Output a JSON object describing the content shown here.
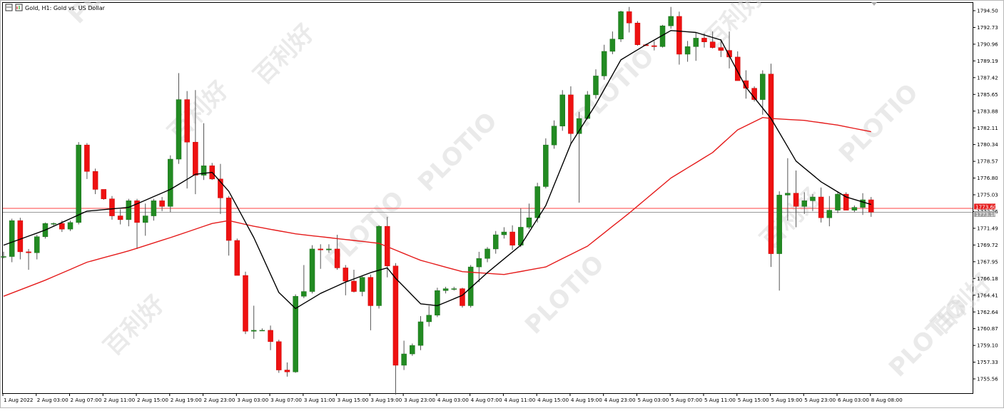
{
  "header": {
    "title": "Gold, H1:  Gold vs. US Dollar"
  },
  "watermark": {
    "brand": "PLOTIO",
    "cn": "百利好"
  },
  "colors": {
    "bull": "#228b22",
    "bear": "#ee1111",
    "wick": "#555555",
    "ma_fast": "#000000",
    "ma_slow": "#e51b1b",
    "red_line": "#ff4040",
    "grey_line": "#9a9a9a",
    "bid_tag": "#e52020",
    "ask_tag": "#a0a0a0"
  },
  "chart_data": {
    "type": "candlestick",
    "symbol": "Gold",
    "timeframe": "H1",
    "ylim": [
      1754.4,
      1795.3
    ],
    "y_ticks": [
      "1794.50",
      "1792.73",
      "1790.96",
      "1789.19",
      "1787.42",
      "1785.65",
      "1783.88",
      "1782.11",
      "1780.34",
      "1778.57",
      "1776.80",
      "1775.03",
      "1773.26",
      "1771.49",
      "1769.72",
      "1767.95",
      "1766.18",
      "1764.41",
      "1762.64",
      "1760.87",
      "1759.10",
      "1757.33",
      "1755.56"
    ],
    "x_ticks": [
      "1 Aug 2022",
      "2 Aug 03:00",
      "2 Aug 07:00",
      "2 Aug 11:00",
      "2 Aug 15:00",
      "2 Aug 19:00",
      "2 Aug 23:00",
      "3 Aug 03:00",
      "3 Aug 07:00",
      "3 Aug 11:00",
      "3 Aug 15:00",
      "3 Aug 19:00",
      "3 Aug 23:00",
      "4 Aug 03:00",
      "4 Aug 07:00",
      "4 Aug 11:00",
      "4 Aug 15:00",
      "4 Aug 19:00",
      "4 Aug 23:00",
      "5 Aug 03:00",
      "5 Aug 07:00",
      "5 Aug 11:00",
      "5 Aug 15:00",
      "5 Aug 19:00",
      "5 Aug 23:00",
      "6 Aug 03:00",
      "8 Aug 08:00"
    ],
    "price_tags": {
      "red": "1773.60",
      "grey": "1773.18"
    },
    "levels": {
      "red": 1773.6,
      "grey": 1773.18
    },
    "candles": [
      [
        1768.5,
        1769.0,
        1768.3,
        1768.5
      ],
      [
        1768.5,
        1772.5,
        1767.9,
        1772.3
      ],
      [
        1772.3,
        1772.6,
        1768.2,
        1769.0
      ],
      [
        1769.0,
        1769.3,
        1767.1,
        1768.9
      ],
      [
        1768.9,
        1770.8,
        1768.2,
        1770.6
      ],
      [
        1770.6,
        1772.1,
        1770.4,
        1772.0
      ],
      [
        1772.0,
        1772.1,
        1771.7,
        1772.0
      ],
      [
        1772.0,
        1772.3,
        1771.1,
        1771.4
      ],
      [
        1771.4,
        1772.3,
        1771.2,
        1772.1
      ],
      [
        1772.1,
        1780.6,
        1771.9,
        1780.3
      ],
      [
        1780.3,
        1780.5,
        1776.7,
        1777.5
      ],
      [
        1777.5,
        1777.8,
        1775.1,
        1775.6
      ],
      [
        1775.6,
        1775.6,
        1774.5,
        1774.6
      ],
      [
        1774.6,
        1774.9,
        1772.4,
        1772.8
      ],
      [
        1772.8,
        1773.5,
        1771.9,
        1772.4
      ],
      [
        1772.4,
        1774.6,
        1771.7,
        1774.4
      ],
      [
        1774.4,
        1774.6,
        1769.3,
        1772.1
      ],
      [
        1772.1,
        1774.1,
        1770.7,
        1772.8
      ],
      [
        1772.8,
        1774.6,
        1772.3,
        1774.4
      ],
      [
        1774.4,
        1774.8,
        1773.3,
        1773.8
      ],
      [
        1773.8,
        1779.2,
        1773.2,
        1778.8
      ],
      [
        1778.8,
        1787.9,
        1778.3,
        1785.1
      ],
      [
        1785.1,
        1786.0,
        1775.7,
        1780.6
      ],
      [
        1780.6,
        1786.1,
        1775.1,
        1777.1
      ],
      [
        1777.1,
        1782.6,
        1776.6,
        1778.1
      ],
      [
        1778.1,
        1778.4,
        1776.6,
        1776.7
      ],
      [
        1776.7,
        1778.3,
        1773.0,
        1774.7
      ],
      [
        1774.7,
        1774.9,
        1768.6,
        1770.2
      ],
      [
        1770.2,
        1770.4,
        1766.6,
        1766.5
      ],
      [
        1766.5,
        1766.9,
        1760.3,
        1760.6
      ],
      [
        1760.6,
        1763.3,
        1759.8,
        1760.7
      ],
      [
        1760.7,
        1760.9,
        1760.7,
        1760.7
      ],
      [
        1760.7,
        1761.2,
        1758.6,
        1759.5
      ],
      [
        1759.5,
        1759.7,
        1756.2,
        1756.5
      ],
      [
        1756.5,
        1757.3,
        1755.8,
        1756.3
      ],
      [
        1756.3,
        1764.5,
        1756.2,
        1764.3
      ],
      [
        1764.3,
        1767.6,
        1764.1,
        1764.8
      ],
      [
        1764.8,
        1769.7,
        1764.6,
        1769.3
      ],
      [
        1769.3,
        1769.8,
        1767.2,
        1769.2
      ],
      [
        1769.2,
        1769.8,
        1768.9,
        1769.3
      ],
      [
        1769.3,
        1770.8,
        1767.1,
        1767.3
      ],
      [
        1767.3,
        1767.6,
        1764.4,
        1765.9
      ],
      [
        1765.9,
        1767.1,
        1764.7,
        1764.8
      ],
      [
        1764.8,
        1766.5,
        1764.3,
        1766.3
      ],
      [
        1766.3,
        1766.6,
        1760.7,
        1763.3
      ],
      [
        1763.3,
        1771.8,
        1763.0,
        1771.7
      ],
      [
        1771.7,
        1772.7,
        1766.3,
        1767.5
      ],
      [
        1767.5,
        1767.8,
        1753.9,
        1757.0
      ],
      [
        1757.0,
        1759.6,
        1756.5,
        1758.2
      ],
      [
        1758.2,
        1759.3,
        1758.0,
        1759.1
      ],
      [
        1759.1,
        1762.2,
        1758.6,
        1761.6
      ],
      [
        1761.6,
        1763.3,
        1761.1,
        1762.3
      ],
      [
        1762.3,
        1765.2,
        1762.1,
        1764.9
      ],
      [
        1764.9,
        1765.3,
        1764.6,
        1765.1
      ],
      [
        1765.1,
        1765.3,
        1764.9,
        1765.1
      ],
      [
        1765.1,
        1765.2,
        1763.1,
        1763.3
      ],
      [
        1763.3,
        1767.6,
        1763.1,
        1767.4
      ],
      [
        1767.4,
        1769.0,
        1765.8,
        1768.3
      ],
      [
        1768.3,
        1769.5,
        1767.9,
        1769.3
      ],
      [
        1769.3,
        1771.2,
        1768.8,
        1770.8
      ],
      [
        1770.8,
        1771.6,
        1770.4,
        1771.1
      ],
      [
        1771.1,
        1771.8,
        1769.2,
        1769.7
      ],
      [
        1769.7,
        1773.6,
        1769.5,
        1771.6
      ],
      [
        1771.6,
        1774.1,
        1771.4,
        1772.6
      ],
      [
        1772.6,
        1776.3,
        1772.1,
        1775.9
      ],
      [
        1775.9,
        1781.0,
        1775.7,
        1780.3
      ],
      [
        1780.3,
        1782.9,
        1779.9,
        1782.3
      ],
      [
        1782.3,
        1786.1,
        1781.8,
        1785.6
      ],
      [
        1785.6,
        1786.5,
        1780.4,
        1781.5
      ],
      [
        1781.5,
        1783.8,
        1774.2,
        1783.1
      ],
      [
        1783.1,
        1786.0,
        1783.0,
        1785.6
      ],
      [
        1785.6,
        1788.3,
        1785.2,
        1787.6
      ],
      [
        1787.6,
        1790.9,
        1787.2,
        1790.2
      ],
      [
        1790.2,
        1792.3,
        1789.9,
        1791.5
      ],
      [
        1791.5,
        1794.5,
        1791.2,
        1794.4
      ],
      [
        1794.4,
        1794.9,
        1792.2,
        1793.2
      ],
      [
        1793.2,
        1793.4,
        1790.8,
        1790.9
      ],
      [
        1790.9,
        1791.0,
        1790.8,
        1790.8
      ],
      [
        1790.8,
        1791.3,
        1790.3,
        1790.7
      ],
      [
        1790.7,
        1793.0,
        1790.6,
        1792.9
      ],
      [
        1792.9,
        1794.9,
        1792.6,
        1793.9
      ],
      [
        1793.9,
        1794.4,
        1788.8,
        1789.9
      ],
      [
        1789.9,
        1791.3,
        1789.1,
        1790.7
      ],
      [
        1790.7,
        1792.2,
        1789.2,
        1791.6
      ],
      [
        1791.6,
        1792.1,
        1790.6,
        1791.2
      ],
      [
        1791.2,
        1792.3,
        1790.5,
        1790.6
      ],
      [
        1790.6,
        1791.5,
        1789.6,
        1790.3
      ],
      [
        1790.3,
        1792.3,
        1788.4,
        1789.6
      ],
      [
        1789.6,
        1790.2,
        1787.1,
        1787.1
      ],
      [
        1787.1,
        1788.2,
        1785.2,
        1786.3
      ],
      [
        1786.3,
        1786.5,
        1784.9,
        1785.1
      ],
      [
        1785.1,
        1788.2,
        1783.5,
        1787.8
      ],
      [
        1787.8,
        1788.9,
        1767.4,
        1768.8
      ],
      [
        1768.8,
        1775.4,
        1764.9,
        1775.0
      ],
      [
        1775.0,
        1778.9,
        1772.3,
        1775.2
      ],
      [
        1775.2,
        1777.6,
        1771.6,
        1773.8
      ],
      [
        1773.8,
        1775.3,
        1773.0,
        1774.4
      ],
      [
        1774.4,
        1775.1,
        1773.3,
        1774.8
      ],
      [
        1774.8,
        1775.8,
        1772.1,
        1772.6
      ],
      [
        1772.6,
        1774.9,
        1771.7,
        1773.4
      ],
      [
        1773.4,
        1775.4,
        1773.1,
        1775.1
      ],
      [
        1775.1,
        1775.3,
        1773.4,
        1773.4
      ],
      [
        1773.4,
        1773.9,
        1773.2,
        1773.7
      ],
      [
        1773.7,
        1775.2,
        1772.9,
        1774.5
      ],
      [
        1774.5,
        1774.8,
        1772.7,
        1773.2
      ]
    ],
    "ma_fast": [
      [
        0,
        1769.7
      ],
      [
        5,
        1771.3
      ],
      [
        10,
        1773.3
      ],
      [
        15,
        1773.7
      ],
      [
        20,
        1775.6
      ],
      [
        23,
        1777.2
      ],
      [
        25,
        1777.4
      ],
      [
        27,
        1775.4
      ],
      [
        30,
        1770.5
      ],
      [
        33,
        1764.7
      ],
      [
        35,
        1763.0
      ],
      [
        38,
        1764.6
      ],
      [
        41,
        1765.8
      ],
      [
        44,
        1766.8
      ],
      [
        46,
        1767.3
      ],
      [
        47,
        1766.2
      ],
      [
        50,
        1763.5
      ],
      [
        52,
        1763.3
      ],
      [
        55,
        1764.4
      ],
      [
        58,
        1766.8
      ],
      [
        62,
        1769.7
      ],
      [
        65,
        1773.9
      ],
      [
        68,
        1780.4
      ],
      [
        71,
        1784.6
      ],
      [
        74,
        1789.3
      ],
      [
        77,
        1790.9
      ],
      [
        80,
        1792.4
      ],
      [
        83,
        1792.2
      ],
      [
        86,
        1791.4
      ],
      [
        89,
        1786.4
      ],
      [
        92,
        1783.1
      ],
      [
        95,
        1778.6
      ],
      [
        98,
        1776.4
      ],
      [
        101,
        1774.8
      ],
      [
        104,
        1774.0
      ]
    ],
    "ma_slow": [
      [
        0,
        1764.3
      ],
      [
        5,
        1766.0
      ],
      [
        10,
        1767.9
      ],
      [
        15,
        1769.1
      ],
      [
        20,
        1770.5
      ],
      [
        25,
        1772.0
      ],
      [
        27,
        1772.3
      ],
      [
        30,
        1771.7
      ],
      [
        35,
        1770.9
      ],
      [
        40,
        1770.4
      ],
      [
        45,
        1769.9
      ],
      [
        50,
        1768.1
      ],
      [
        55,
        1766.9
      ],
      [
        60,
        1766.6
      ],
      [
        65,
        1767.4
      ],
      [
        70,
        1769.6
      ],
      [
        75,
        1773.1
      ],
      [
        80,
        1776.8
      ],
      [
        85,
        1779.5
      ],
      [
        88,
        1781.9
      ],
      [
        91,
        1783.2
      ],
      [
        92,
        1783.1
      ],
      [
        96,
        1782.9
      ],
      [
        100,
        1782.4
      ],
      [
        104,
        1781.7
      ]
    ]
  }
}
